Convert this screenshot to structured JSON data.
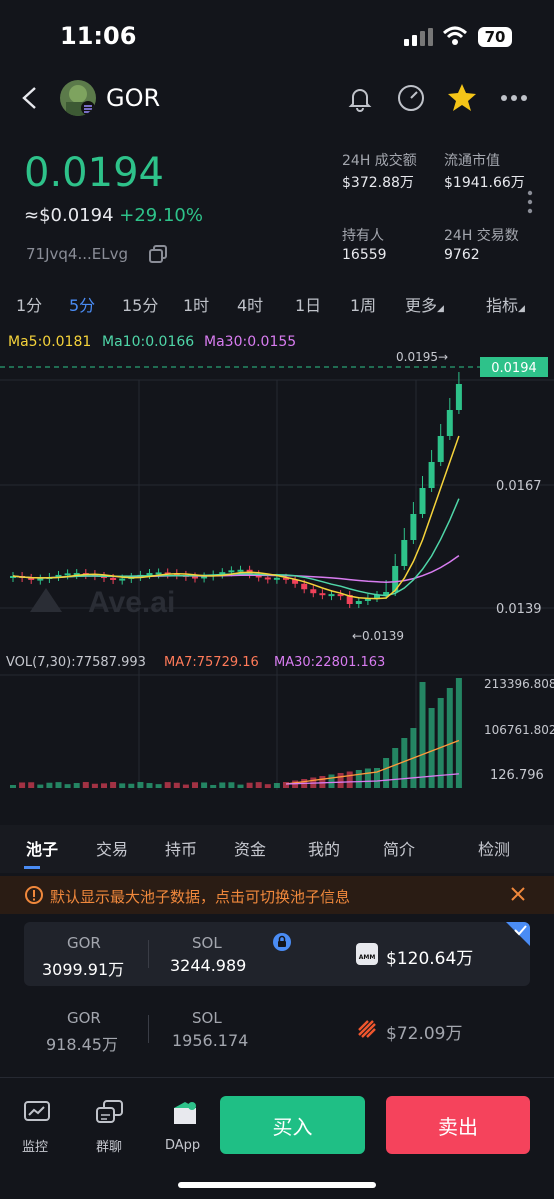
{
  "status": {
    "time": "11:06",
    "battery": "70"
  },
  "header": {
    "title": "GOR"
  },
  "price": {
    "main": "0.0194",
    "usd": "≈$0.0194",
    "change": "+29.10%",
    "address": "71Jvq4...ELvg"
  },
  "stats": [
    {
      "label": "24H 成交额",
      "value": "$372.88万"
    },
    {
      "label": "流通市值",
      "value": "$1941.66万"
    },
    {
      "label": "持有人",
      "value": "16559"
    },
    {
      "label": "24H 交易数",
      "value": "9762"
    }
  ],
  "timeframes": [
    "1分",
    "5分",
    "15分",
    "1时",
    "4时",
    "1日",
    "1周",
    "更多",
    "指标"
  ],
  "ma": {
    "ma5": "Ma5:0.0181",
    "ma10": "Ma10:0.0166",
    "ma30": "Ma30:0.0155"
  },
  "chart_data": {
    "type": "candlestick",
    "y_ticks": [
      "0.0194",
      "0.0167",
      "0.0139"
    ],
    "high_label": "0.0195→",
    "low_label": "←0.0139",
    "current": "0.0194",
    "watermark": "Ave.ai",
    "vol_line": {
      "vol": "VOL(7,30):77587.993",
      "ma7": "MA7:75729.16",
      "ma30": "MA30:22801.163"
    },
    "vol_ticks": [
      "213396.808",
      "106761.802",
      "126.796"
    ],
    "colors": {
      "up": "#2ec28a",
      "down": "#f0425a",
      "ma5": "#f5d33b",
      "ma10": "#4fd6a8",
      "ma30": "#d87cf0"
    }
  },
  "tabs": [
    "池子",
    "交易",
    "持币",
    "资金",
    "我的",
    "简介",
    "检测"
  ],
  "notice": "默认显示最大池子数据，点击可切换池子信息",
  "pools": [
    {
      "token_label": "GOR",
      "token_amount": "3099.91万",
      "quote_label": "SOL",
      "quote_amount": "3244.989",
      "badge": "AMM",
      "usd": "$120.64万"
    },
    {
      "token_label": "GOR",
      "token_amount": "918.45万",
      "quote_label": "SOL",
      "quote_amount": "1956.174",
      "usd": "$72.09万"
    }
  ],
  "bottom": {
    "monitor": "监控",
    "chat": "群聊",
    "dapp": "DApp",
    "buy": "买入",
    "sell": "卖出"
  }
}
